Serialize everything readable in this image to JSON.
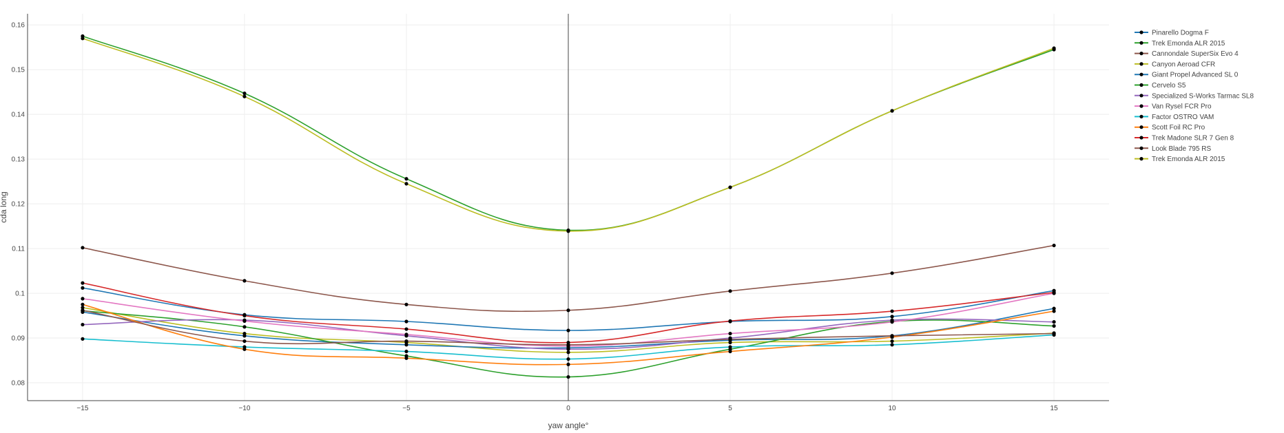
{
  "chart_data": {
    "type": "line",
    "title": "",
    "xlabel": "yaw angle°",
    "ylabel": "cda long",
    "x": [
      -15,
      -10,
      -5,
      0,
      5,
      10,
      15
    ],
    "xlim": [
      -16.7,
      16.7
    ],
    "ylim": [
      0.076,
      0.1625
    ],
    "xticks": [
      -15,
      -10,
      -5,
      0,
      5,
      10,
      15
    ],
    "xtick_labels": [
      "−15",
      "−10",
      "−5",
      "0",
      "5",
      "10",
      "15"
    ],
    "yticks": [
      0.08,
      0.09,
      0.1,
      0.11,
      0.12,
      0.13,
      0.14,
      0.15,
      0.16
    ],
    "ytick_labels": [
      "0.08",
      "0.09",
      "0.1",
      "0.11",
      "0.12",
      "0.13",
      "0.14",
      "0.15",
      "0.16"
    ],
    "grid": true,
    "legend_position": "top-right",
    "marker_color": "#000000",
    "series": [
      {
        "name": "Pinarello Dogma F",
        "color": "#1f77b4",
        "values": [
          0.1012,
          0.0952,
          0.0937,
          0.0917,
          0.0937,
          0.0948,
          0.1006
        ]
      },
      {
        "name": "Trek Emonda ALR 2015",
        "color": "#2ca02c",
        "values": [
          0.1575,
          0.1447,
          0.1256,
          0.1141,
          0.1237,
          0.1408,
          0.1545
        ]
      },
      {
        "name": "Cannondale SuperSix Evo 4",
        "color": "#8c564b",
        "values": [
          0.1102,
          0.1028,
          0.0975,
          0.0962,
          0.1005,
          0.1045,
          0.1107
        ]
      },
      {
        "name": "Canyon Aeroad CFR",
        "color": "#bcbd22",
        "values": [
          0.0968,
          0.091,
          0.089,
          0.0868,
          0.089,
          0.0893,
          0.0911
        ]
      },
      {
        "name": "Giant Propel Advanced SL 0",
        "color": "#1f77b4",
        "values": [
          0.0958,
          0.0905,
          0.0885,
          0.0878,
          0.0895,
          0.0905,
          0.0966
        ]
      },
      {
        "name": "Cervelo S5",
        "color": "#2ca02c",
        "values": [
          0.0961,
          0.0925,
          0.086,
          0.0813,
          0.0875,
          0.0937,
          0.0927
        ]
      },
      {
        "name": "Specialized S-Works Tarmac SL8",
        "color": "#9467bd",
        "values": [
          0.093,
          0.094,
          0.0905,
          0.0875,
          0.09,
          0.094,
          0.0936
        ]
      },
      {
        "name": "Van Rysel FCR Pro",
        "color": "#e377c2",
        "values": [
          0.0988,
          0.0938,
          0.0908,
          0.0882,
          0.091,
          0.0936,
          0.1
        ]
      },
      {
        "name": "Factor OSTRO VAM",
        "color": "#17becf",
        "values": [
          0.0898,
          0.088,
          0.087,
          0.0853,
          0.088,
          0.0885,
          0.0907
        ]
      },
      {
        "name": "Scott Foil RC Pro",
        "color": "#ff7f0e",
        "values": [
          0.0975,
          0.0875,
          0.0855,
          0.0841,
          0.087,
          0.0902,
          0.096
        ]
      },
      {
        "name": "Trek Madone SLR 7 Gen 8",
        "color": "#d62728",
        "values": [
          0.1023,
          0.095,
          0.092,
          0.089,
          0.0938,
          0.096,
          0.1002
        ]
      },
      {
        "name": "Look Blade 795 RS",
        "color": "#8c564b",
        "values": [
          0.0962,
          0.0893,
          0.0893,
          0.0885,
          0.0897,
          0.0905,
          0.091
        ]
      },
      {
        "name": "Trek Emonda ALR 2015",
        "color": "#bcbd22",
        "values": [
          0.157,
          0.144,
          0.1245,
          0.1139,
          0.1237,
          0.1408,
          0.1548
        ]
      }
    ]
  }
}
